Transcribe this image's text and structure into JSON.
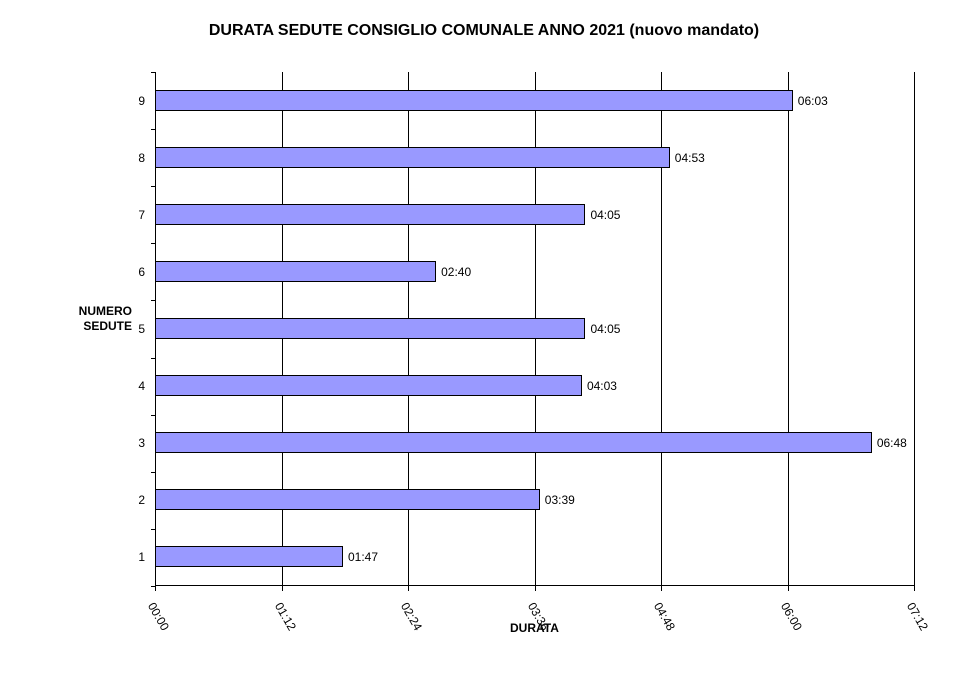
{
  "chart_data": {
    "type": "bar",
    "orientation": "horizontal",
    "title": "DURATA SEDUTE CONSIGLIO COMUNALE ANNO 2021 (nuovo mandato)",
    "xlabel": "DURATA",
    "ylabel": "NUMERO SEDUTE",
    "categories": [
      "1",
      "2",
      "3",
      "4",
      "5",
      "6",
      "7",
      "8",
      "9"
    ],
    "values_minutes": [
      107,
      219,
      408,
      243,
      245,
      160,
      245,
      293,
      363
    ],
    "value_labels": [
      "01:47",
      "03:39",
      "06:48",
      "04:03",
      "04:05",
      "02:40",
      "04:05",
      "04:53",
      "06:03"
    ],
    "x_ticks": [
      "00:00",
      "01:12",
      "02:24",
      "03:36",
      "04:48",
      "06:00",
      "07:12"
    ],
    "xlim_minutes": [
      0,
      432
    ],
    "grid": "vertical major gridlines",
    "bar_color": "#9999ff",
    "legend": "none"
  }
}
